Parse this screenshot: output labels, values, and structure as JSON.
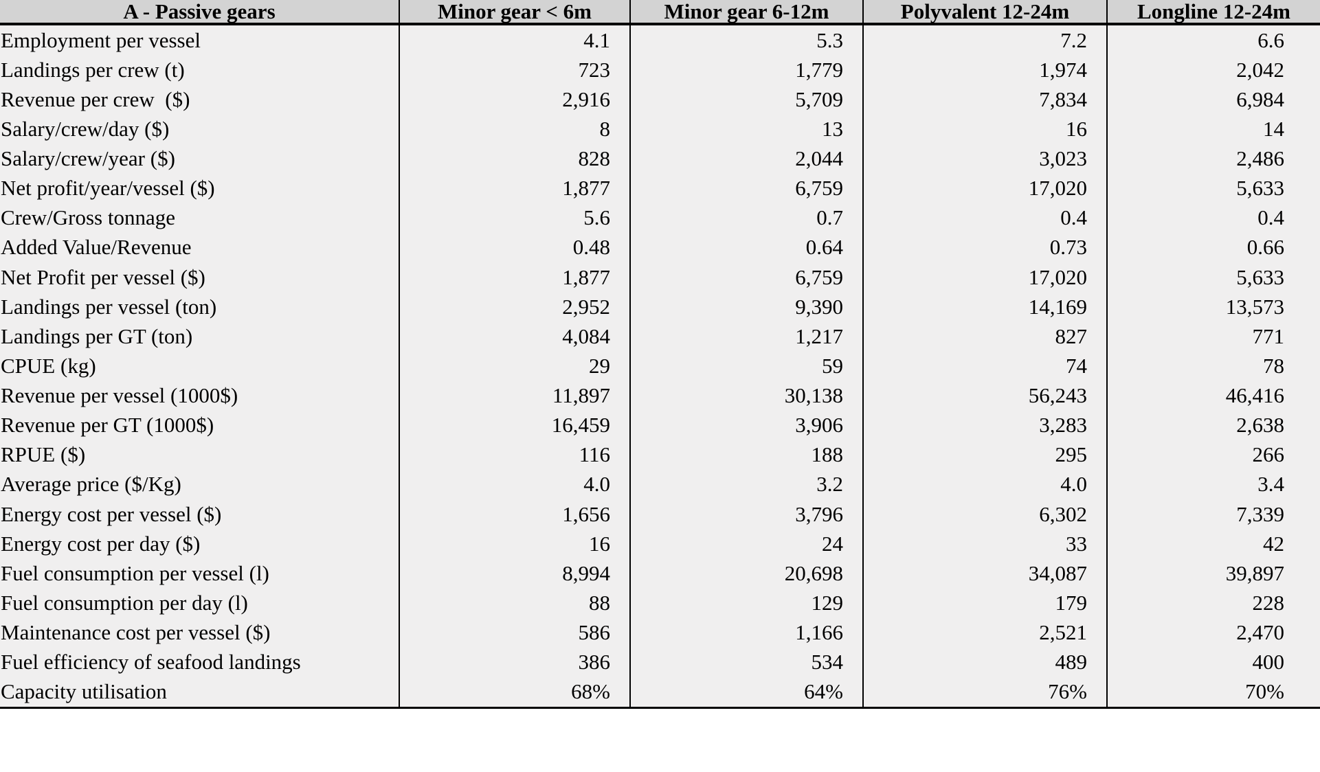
{
  "colors": {
    "header_bg": "#d3d3d3",
    "body_bg": "#f0efef",
    "border": "#000000",
    "text": "#000000"
  },
  "chart_data": {
    "type": "table",
    "title": "A - Passive gears",
    "columns": [
      "A - Passive gears",
      "Minor gear < 6m",
      "Minor gear 6-12m",
      "Polyvalent 12-24m",
      "Longline 12-24m"
    ],
    "rows": [
      {
        "label": "Employment per vessel",
        "values": [
          "4.1",
          "5.3",
          "7.2",
          "6.6"
        ]
      },
      {
        "label": "Landings per crew (t)",
        "values": [
          "723",
          "1,779",
          "1,974",
          "2,042"
        ]
      },
      {
        "label": "Revenue per crew  ($)",
        "values": [
          "2,916",
          "5,709",
          "7,834",
          "6,984"
        ]
      },
      {
        "label": "Salary/crew/day ($)",
        "values": [
          "8",
          "13",
          "16",
          "14"
        ]
      },
      {
        "label": "Salary/crew/year ($)",
        "values": [
          "828",
          "2,044",
          "3,023",
          "2,486"
        ]
      },
      {
        "label": "Net profit/year/vessel ($)",
        "values": [
          "1,877",
          "6,759",
          "17,020",
          "5,633"
        ]
      },
      {
        "label": "Crew/Gross tonnage",
        "values": [
          "5.6",
          "0.7",
          "0.4",
          "0.4"
        ]
      },
      {
        "label": "Added Value/Revenue",
        "values": [
          "0.48",
          "0.64",
          "0.73",
          "0.66"
        ]
      },
      {
        "label": "Net Profit per vessel ($)",
        "values": [
          "1,877",
          "6,759",
          "17,020",
          "5,633"
        ]
      },
      {
        "label": "Landings per vessel (ton)",
        "values": [
          "2,952",
          "9,390",
          "14,169",
          "13,573"
        ]
      },
      {
        "label": "Landings per GT (ton)",
        "values": [
          "4,084",
          "1,217",
          "827",
          "771"
        ]
      },
      {
        "label": "CPUE (kg)",
        "values": [
          "29",
          "59",
          "74",
          "78"
        ]
      },
      {
        "label": "Revenue per vessel (1000$)",
        "values": [
          "11,897",
          "30,138",
          "56,243",
          "46,416"
        ]
      },
      {
        "label": "Revenue per GT (1000$)",
        "values": [
          "16,459",
          "3,906",
          "3,283",
          "2,638"
        ]
      },
      {
        "label": "RPUE ($)",
        "values": [
          "116",
          "188",
          "295",
          "266"
        ]
      },
      {
        "label": "Average price ($/Kg)",
        "values": [
          "4.0",
          "3.2",
          "4.0",
          "3.4"
        ]
      },
      {
        "label": "Energy cost per vessel ($)",
        "values": [
          "1,656",
          "3,796",
          "6,302",
          "7,339"
        ]
      },
      {
        "label": "Energy cost per day ($)",
        "values": [
          "16",
          "24",
          "33",
          "42"
        ]
      },
      {
        "label": "Fuel consumption per vessel (l)",
        "values": [
          "8,994",
          "20,698",
          "34,087",
          "39,897"
        ]
      },
      {
        "label": "Fuel consumption per day (l)",
        "values": [
          "88",
          "129",
          "179",
          "228"
        ]
      },
      {
        "label": "Maintenance cost per vessel ($)",
        "values": [
          "586",
          "1,166",
          "2,521",
          "2,470"
        ]
      },
      {
        "label": "Fuel efficiency of seafood landings",
        "values": [
          "386",
          "534",
          "489",
          "400"
        ]
      },
      {
        "label": "Capacity utilisation",
        "values": [
          "68%",
          "64%",
          "76%",
          "70%"
        ]
      }
    ]
  }
}
